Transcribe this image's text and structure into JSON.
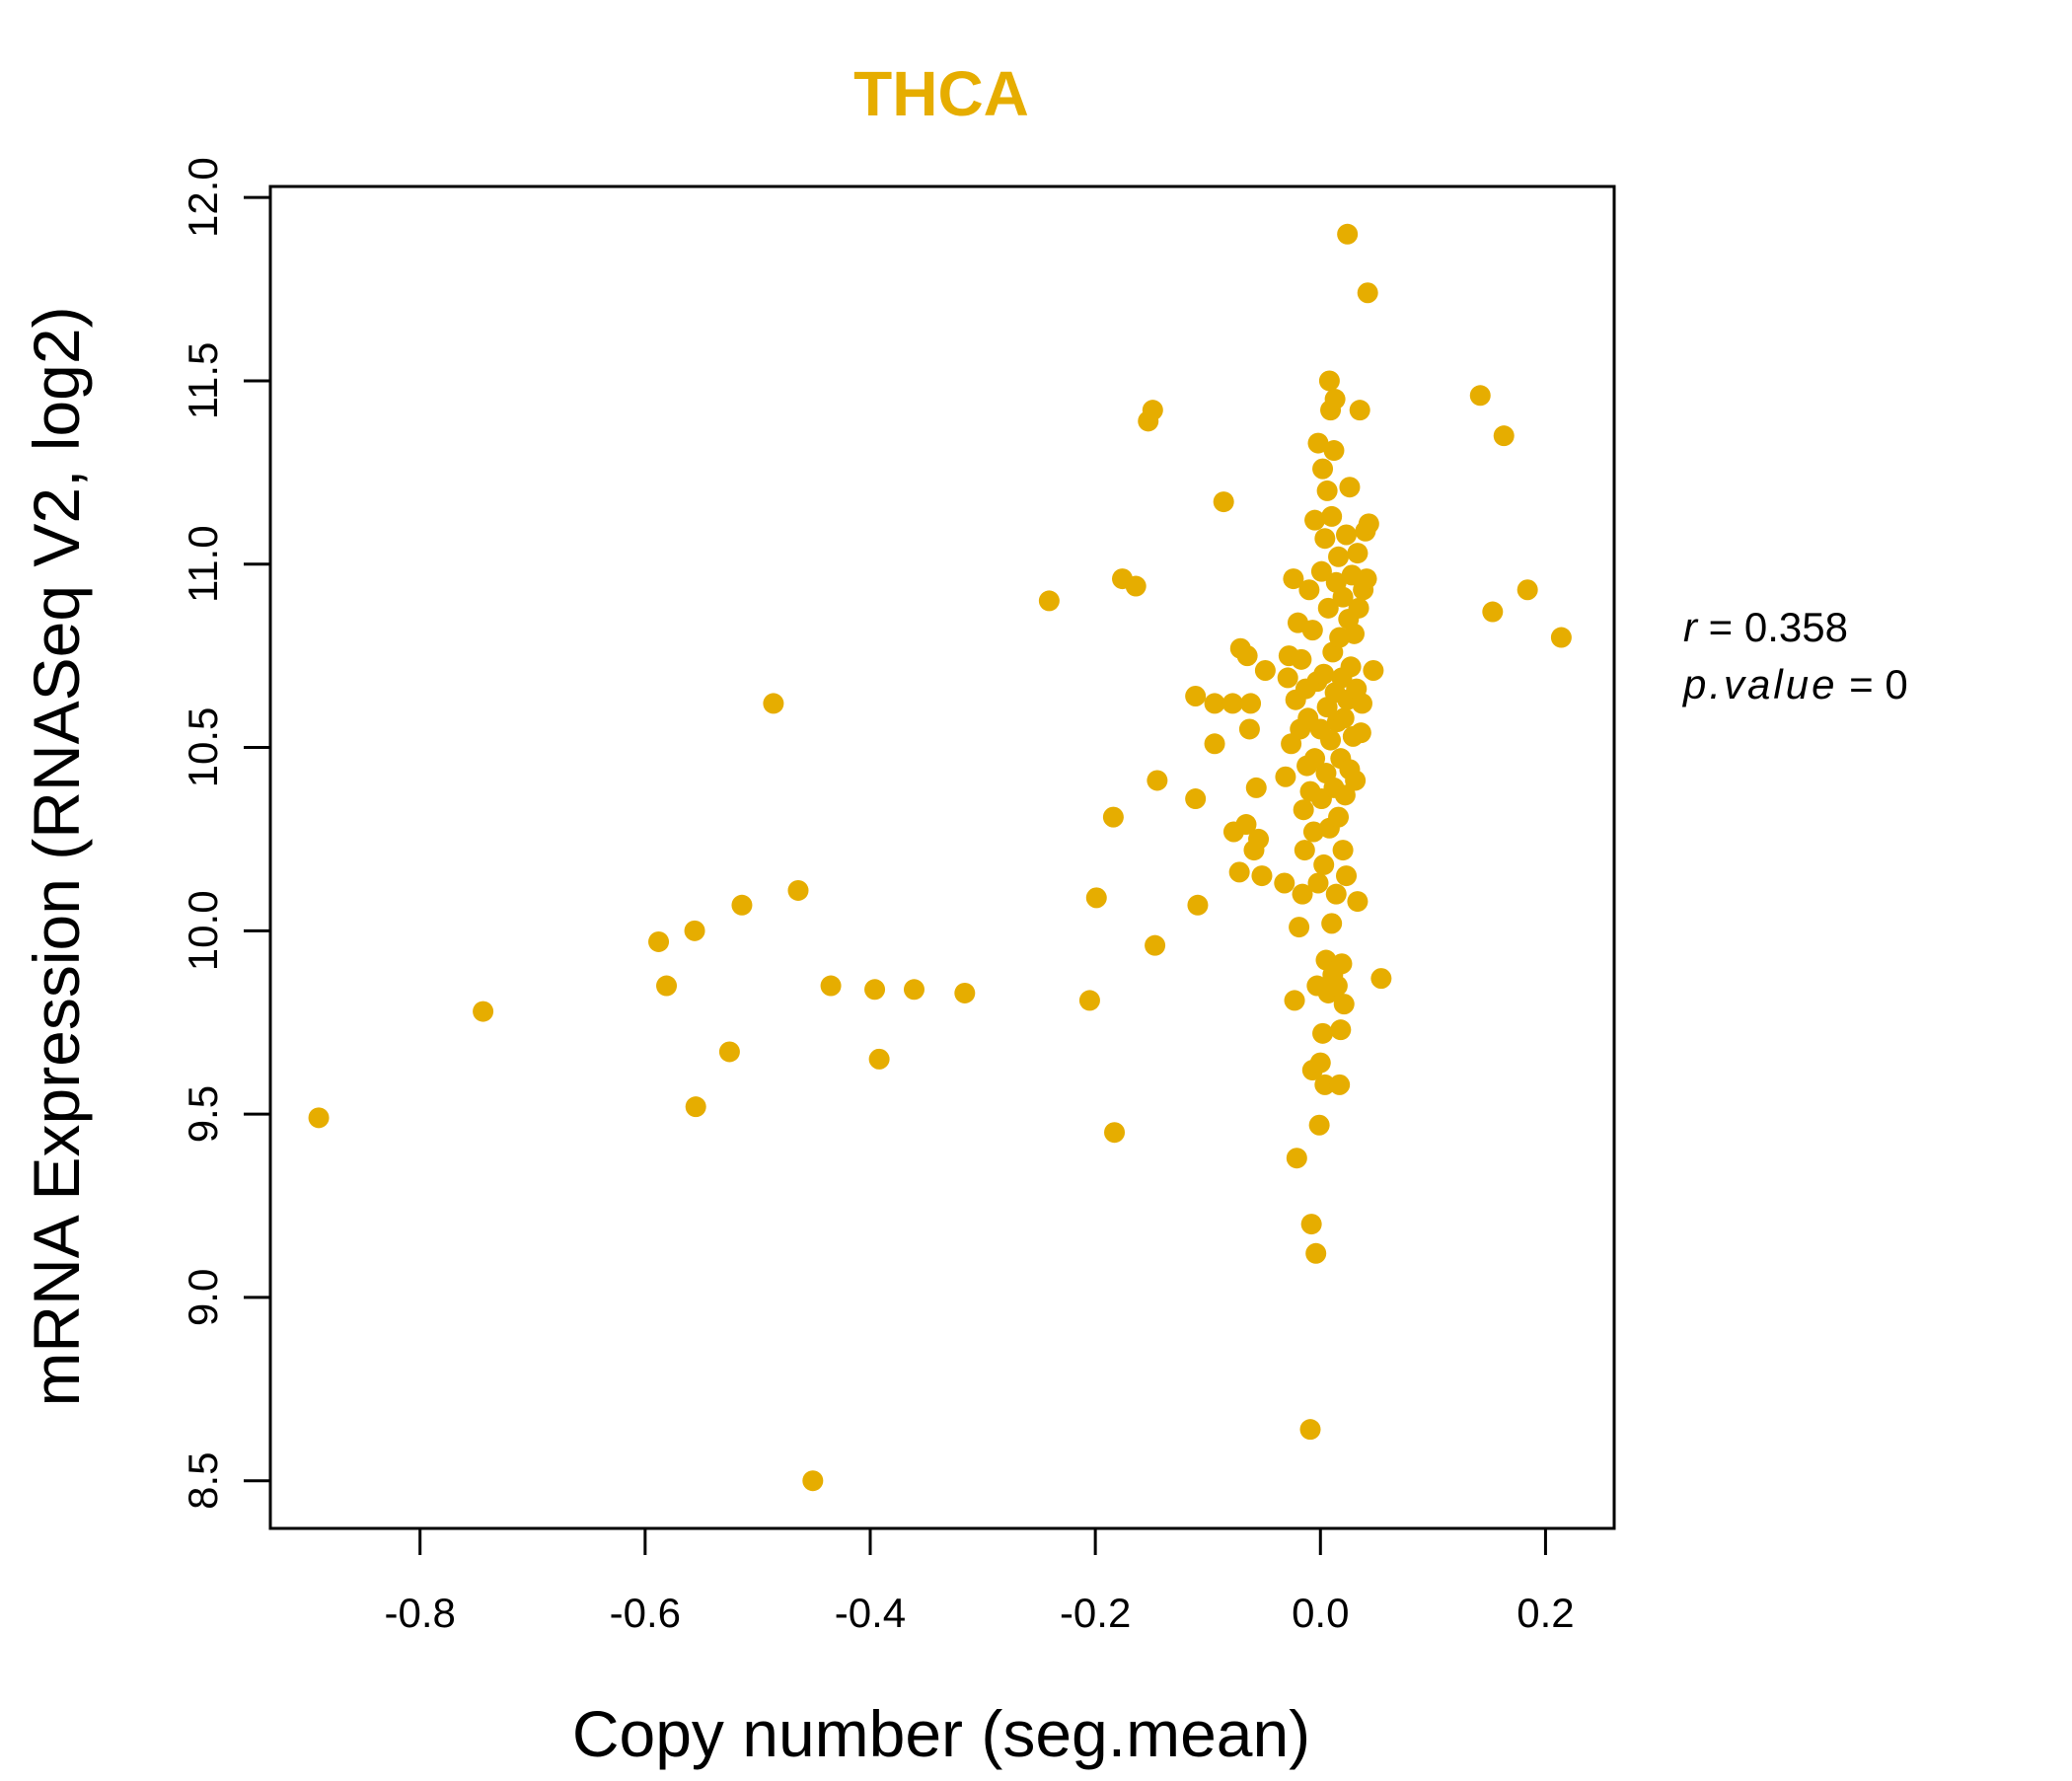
{
  "chart_data": {
    "type": "scatter",
    "title": "THCA",
    "xlabel": "Copy number (seg.mean)",
    "ylabel": "mRNA Expression (RNASeq V2, log2)",
    "xlim": [
      -0.933,
      0.261
    ],
    "ylim": [
      8.37,
      12.03
    ],
    "x_ticks": [
      -0.8,
      -0.6,
      -0.4,
      -0.2,
      0.0,
      0.2
    ],
    "x_tick_labels": [
      "-0.8",
      "-0.6",
      "-0.4",
      "-0.2",
      "0.0",
      "0.2"
    ],
    "y_ticks": [
      8.5,
      9.0,
      9.5,
      10.0,
      10.5,
      11.0,
      11.5,
      12.0
    ],
    "y_tick_labels": [
      "8.5",
      "9.0",
      "9.5",
      "10.0",
      "10.5",
      "11.0",
      "11.5",
      "12.0"
    ],
    "grid": false,
    "point_color": "#E6AD00",
    "stats": {
      "r_label": "r",
      "r_value": "0.358",
      "p_label": "p.value",
      "p_value": "0"
    },
    "series": [
      {
        "name": "THCA",
        "points": [
          [
            -0.89,
            9.49
          ],
          [
            -0.744,
            9.78
          ],
          [
            -0.588,
            9.97
          ],
          [
            -0.581,
            9.85
          ],
          [
            -0.556,
            10.0
          ],
          [
            -0.555,
            9.52
          ],
          [
            -0.525,
            9.67
          ],
          [
            -0.514,
            10.07
          ],
          [
            -0.486,
            10.62
          ],
          [
            -0.464,
            10.11
          ],
          [
            -0.451,
            8.5
          ],
          [
            -0.435,
            9.85
          ],
          [
            -0.396,
            9.84
          ],
          [
            -0.392,
            9.65
          ],
          [
            -0.361,
            9.84
          ],
          [
            -0.316,
            9.83
          ],
          [
            -0.241,
            10.9
          ],
          [
            -0.205,
            9.81
          ],
          [
            -0.199,
            10.09
          ],
          [
            -0.184,
            10.31
          ],
          [
            -0.183,
            9.45
          ],
          [
            -0.176,
            10.96
          ],
          [
            -0.164,
            10.94
          ],
          [
            -0.153,
            11.39
          ],
          [
            -0.149,
            11.42
          ],
          [
            -0.147,
            9.96
          ],
          [
            -0.145,
            10.41
          ],
          [
            -0.111,
            10.64
          ],
          [
            -0.111,
            10.36
          ],
          [
            -0.109,
            10.07
          ],
          [
            -0.094,
            10.62
          ],
          [
            -0.094,
            10.51
          ],
          [
            -0.086,
            11.17
          ],
          [
            -0.078,
            10.62
          ],
          [
            -0.077,
            10.27
          ],
          [
            -0.072,
            10.16
          ],
          [
            -0.071,
            10.77
          ],
          [
            -0.066,
            10.29
          ],
          [
            -0.065,
            10.75
          ],
          [
            -0.063,
            10.55
          ],
          [
            -0.062,
            10.62
          ],
          [
            -0.059,
            10.22
          ],
          [
            -0.057,
            10.39
          ],
          [
            -0.055,
            10.25
          ],
          [
            -0.052,
            10.15
          ],
          [
            -0.049,
            10.71
          ],
          [
            -0.032,
            10.13
          ],
          [
            -0.031,
            10.42
          ],
          [
            -0.029,
            10.69
          ],
          [
            -0.028,
            10.75
          ],
          [
            -0.026,
            10.51
          ],
          [
            -0.024,
            10.96
          ],
          [
            -0.023,
            9.81
          ],
          [
            -0.022,
            10.63
          ],
          [
            -0.021,
            9.38
          ],
          [
            -0.02,
            10.84
          ],
          [
            -0.019,
            10.01
          ],
          [
            -0.018,
            10.55
          ],
          [
            -0.017,
            10.74
          ],
          [
            -0.016,
            10.1
          ],
          [
            -0.015,
            10.33
          ],
          [
            -0.014,
            10.22
          ],
          [
            -0.013,
            10.66
          ],
          [
            -0.012,
            10.45
          ],
          [
            -0.011,
            10.58
          ],
          [
            -0.01,
            10.93
          ],
          [
            -0.009,
            10.38
          ],
          [
            -0.009,
            8.64
          ],
          [
            -0.008,
            9.2
          ],
          [
            -0.007,
            10.82
          ],
          [
            -0.007,
            9.62
          ],
          [
            -0.006,
            10.27
          ],
          [
            -0.005,
            11.12
          ],
          [
            -0.005,
            10.47
          ],
          [
            -0.004,
            9.12
          ],
          [
            -0.003,
            10.68
          ],
          [
            -0.003,
            9.85
          ],
          [
            -0.002,
            11.33
          ],
          [
            -0.002,
            10.13
          ],
          [
            -0.001,
            9.47
          ],
          [
            0.0,
            10.55
          ],
          [
            0.0,
            9.64
          ],
          [
            0.001,
            10.98
          ],
          [
            0.001,
            10.36
          ],
          [
            0.002,
            11.26
          ],
          [
            0.002,
            9.72
          ],
          [
            0.003,
            10.7
          ],
          [
            0.003,
            10.18
          ],
          [
            0.004,
            11.07
          ],
          [
            0.004,
            9.58
          ],
          [
            0.005,
            10.43
          ],
          [
            0.005,
            9.92
          ],
          [
            0.006,
            11.2
          ],
          [
            0.006,
            10.61
          ],
          [
            0.007,
            10.88
          ],
          [
            0.007,
            9.83
          ],
          [
            0.008,
            11.5
          ],
          [
            0.008,
            10.28
          ],
          [
            0.009,
            11.42
          ],
          [
            0.009,
            10.52
          ],
          [
            0.01,
            11.13
          ],
          [
            0.01,
            10.02
          ],
          [
            0.011,
            10.76
          ],
          [
            0.011,
            9.88
          ],
          [
            0.012,
            11.31
          ],
          [
            0.012,
            10.39
          ],
          [
            0.013,
            11.45
          ],
          [
            0.013,
            10.65
          ],
          [
            0.014,
            10.95
          ],
          [
            0.014,
            10.1
          ],
          [
            0.015,
            10.57
          ],
          [
            0.015,
            9.85
          ],
          [
            0.016,
            11.02
          ],
          [
            0.016,
            10.31
          ],
          [
            0.017,
            10.8
          ],
          [
            0.017,
            9.58
          ],
          [
            0.018,
            10.47
          ],
          [
            0.018,
            9.73
          ],
          [
            0.019,
            10.69
          ],
          [
            0.019,
            9.91
          ],
          [
            0.02,
            10.91
          ],
          [
            0.02,
            10.22
          ],
          [
            0.021,
            10.58
          ],
          [
            0.021,
            9.8
          ],
          [
            0.022,
            10.37
          ],
          [
            0.023,
            11.08
          ],
          [
            0.023,
            10.15
          ],
          [
            0.024,
            11.9
          ],
          [
            0.024,
            10.63
          ],
          [
            0.025,
            10.85
          ],
          [
            0.026,
            11.21
          ],
          [
            0.026,
            10.44
          ],
          [
            0.027,
            10.72
          ],
          [
            0.028,
            10.97
          ],
          [
            0.029,
            10.53
          ],
          [
            0.03,
            10.81
          ],
          [
            0.031,
            10.41
          ],
          [
            0.032,
            10.66
          ],
          [
            0.033,
            11.03
          ],
          [
            0.033,
            10.08
          ],
          [
            0.034,
            10.88
          ],
          [
            0.035,
            11.42
          ],
          [
            0.036,
            10.54
          ],
          [
            0.037,
            10.62
          ],
          [
            0.038,
            10.93
          ],
          [
            0.04,
            11.09
          ],
          [
            0.041,
            10.96
          ],
          [
            0.042,
            11.74
          ],
          [
            0.043,
            11.11
          ],
          [
            0.047,
            10.71
          ],
          [
            0.054,
            9.87
          ],
          [
            0.142,
            11.46
          ],
          [
            0.153,
            10.87
          ],
          [
            0.163,
            11.35
          ],
          [
            0.184,
            10.93
          ],
          [
            0.214,
            10.8
          ]
        ]
      }
    ]
  }
}
